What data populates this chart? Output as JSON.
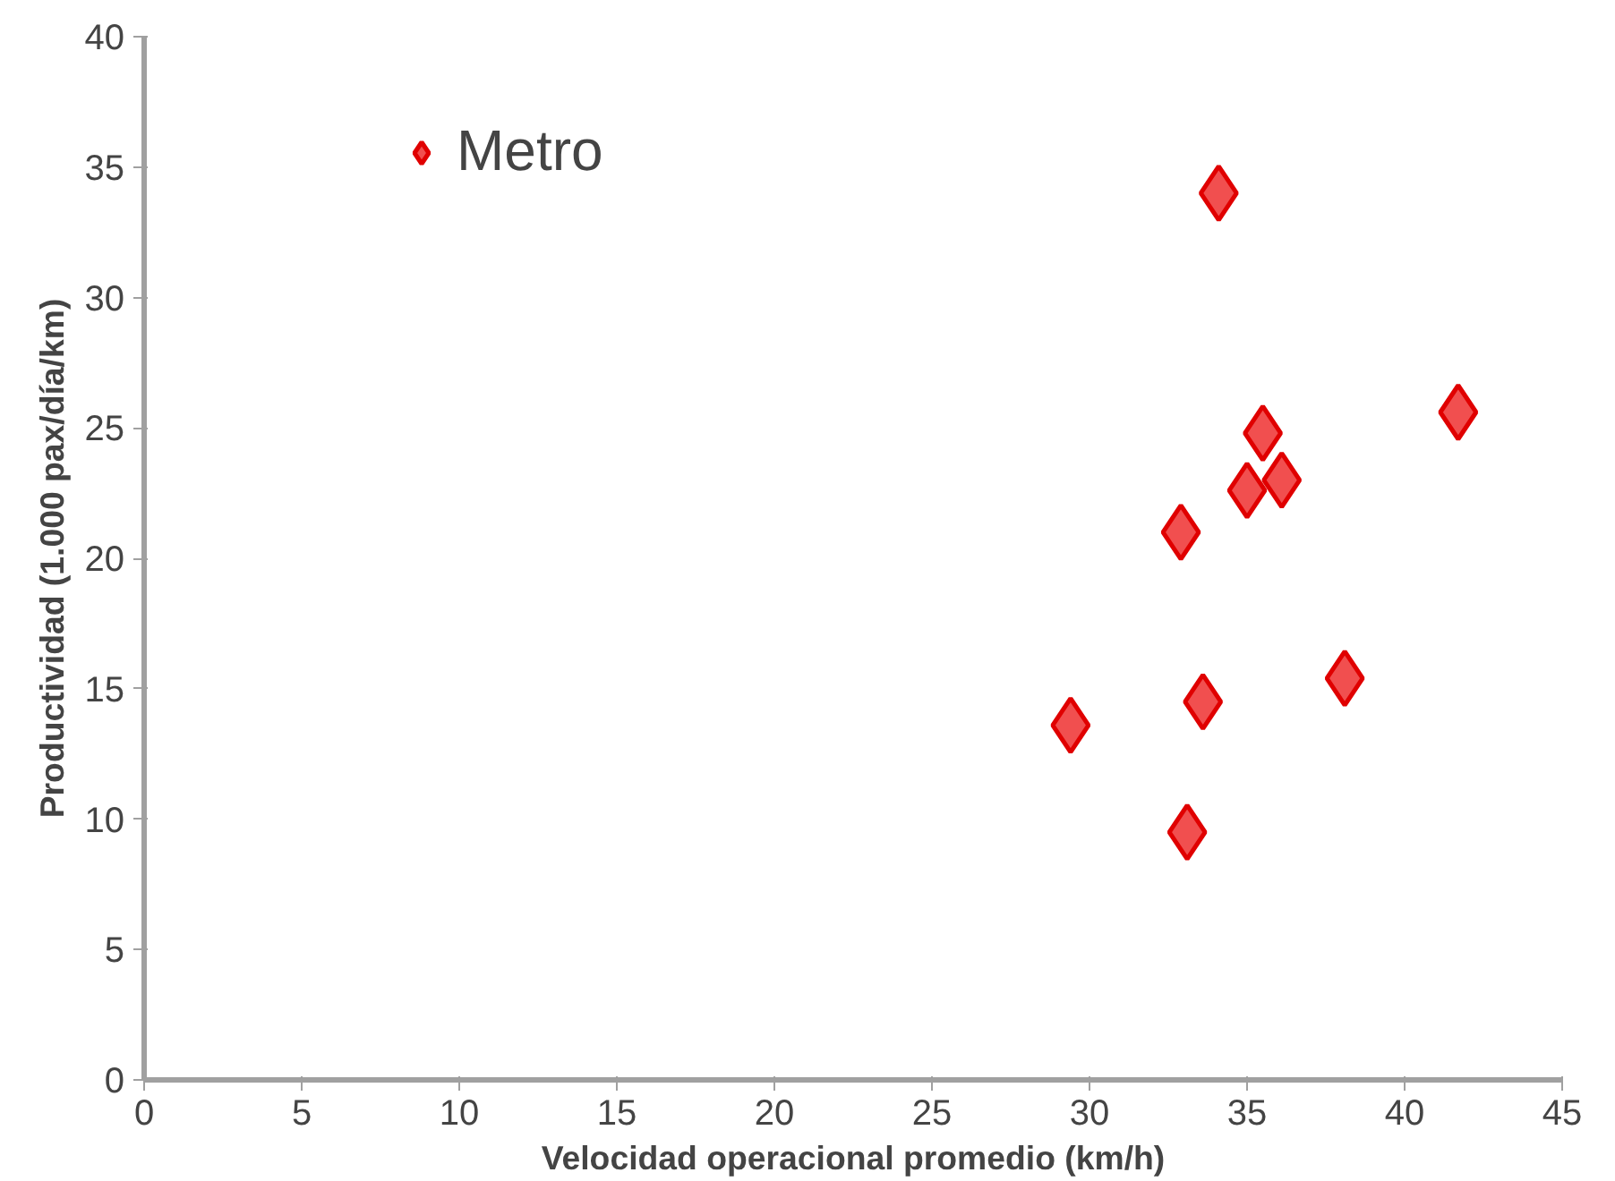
{
  "chart_data": {
    "type": "scatter",
    "xlabel": "Velocidad operacional promedio (km/h)",
    "ylabel": "Productividad (1.000 pax/día/km)",
    "xlim": [
      0,
      45
    ],
    "xticks": [
      0,
      5,
      10,
      15,
      20,
      25,
      30,
      35,
      40,
      45
    ],
    "ylim": [
      0,
      40
    ],
    "yticks": [
      0,
      5,
      10,
      15,
      20,
      25,
      30,
      35,
      40
    ],
    "grid": false,
    "legend": "top",
    "marker": "diamond",
    "series": [
      {
        "name": "Metro",
        "color": "#f03c3c",
        "x": [
          29.4,
          33.1,
          32.9,
          34.1,
          35.0,
          35.5,
          36.1,
          33.6,
          38.1,
          41.7
        ],
        "values": [
          13.6,
          9.5,
          21.0,
          34.0,
          22.6,
          24.8,
          23.0,
          14.5,
          15.4,
          25.6
        ]
      }
    ]
  }
}
